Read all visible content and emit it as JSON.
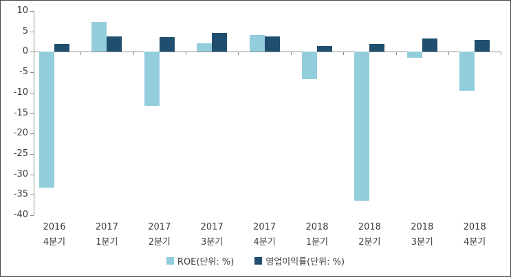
{
  "chart_data": {
    "type": "bar",
    "title": "",
    "xlabel": "",
    "ylabel": "",
    "ylim": [
      -40,
      10
    ],
    "yticks": [
      10,
      5,
      0,
      -5,
      -10,
      -15,
      -20,
      -25,
      -30,
      -35,
      -40
    ],
    "grid": false,
    "legend_position": "bottom-center",
    "axis_color": "#8c8c8c",
    "label_color": "#3b3b3b",
    "categories": [
      {
        "line1": "2016",
        "line2": "4분기"
      },
      {
        "line1": "2017",
        "line2": "1분기"
      },
      {
        "line1": "2017",
        "line2": "2분기"
      },
      {
        "line1": "2017",
        "line2": "3분기"
      },
      {
        "line1": "2017",
        "line2": "4분기"
      },
      {
        "line1": "2018",
        "line2": "1분기"
      },
      {
        "line1": "2018",
        "line2": "2분기"
      },
      {
        "line1": "2018",
        "line2": "3분기"
      },
      {
        "line1": "2018",
        "line2": "4분기"
      }
    ],
    "series": [
      {
        "name": "ROE(단위: %)",
        "key": "roe",
        "color": "#92CDDC",
        "values": [
          -33.3,
          7.3,
          -13.2,
          2.1,
          4.1,
          -6.7,
          -36.4,
          -1.4,
          -9.5
        ]
      },
      {
        "name": "영업이익률(단위: %)",
        "key": "op-margin",
        "color": "#1F4E6E",
        "values": [
          1.9,
          3.7,
          3.6,
          4.6,
          3.8,
          1.4,
          2.0,
          3.3,
          2.9
        ]
      }
    ]
  }
}
